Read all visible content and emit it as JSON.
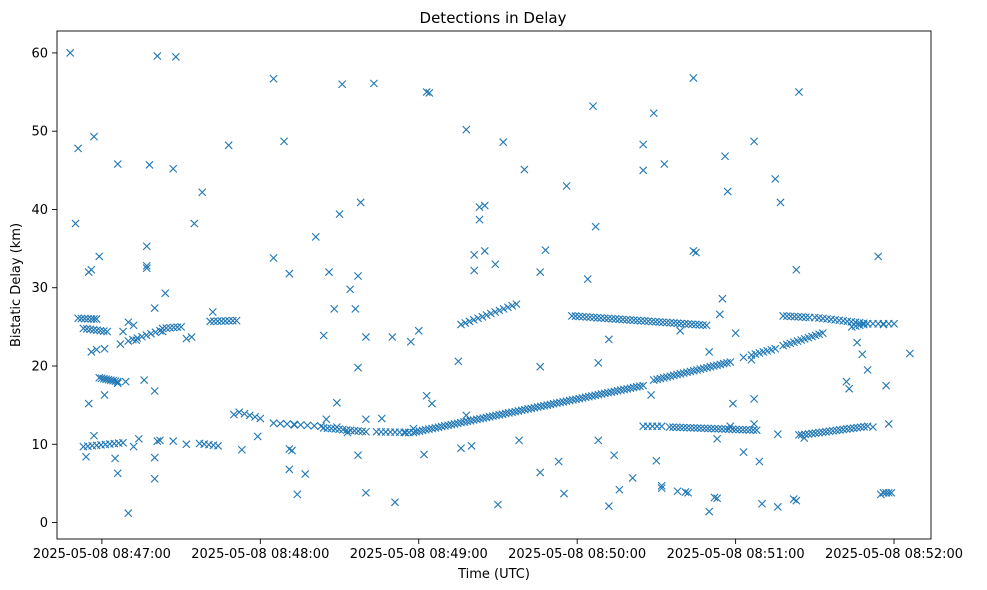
{
  "chart_data": {
    "type": "scatter",
    "title": "Detections in Delay",
    "xlabel": "Time (UTC)",
    "ylabel": "Bistatic Delay (km)",
    "marker": "x",
    "color": "#1f77b4",
    "x_unit": "seconds since 2025-05-08 08:47:00",
    "xlim": [
      -17,
      314
    ],
    "ylim": [
      -2.1,
      62.8
    ],
    "x_ticks": [
      {
        "value": 0,
        "label": "2025-05-08 08:47:00"
      },
      {
        "value": 60,
        "label": "2025-05-08 08:48:00"
      },
      {
        "value": 120,
        "label": "2025-05-08 08:49:00"
      },
      {
        "value": 180,
        "label": "2025-05-08 08:50:00"
      },
      {
        "value": 240,
        "label": "2025-05-08 08:51:00"
      },
      {
        "value": 300,
        "label": "2025-05-08 08:52:00"
      }
    ],
    "y_ticks": [
      {
        "value": 0,
        "label": "0"
      },
      {
        "value": 10,
        "label": "10"
      },
      {
        "value": 20,
        "label": "20"
      },
      {
        "value": 30,
        "label": "30"
      },
      {
        "value": 40,
        "label": "40"
      },
      {
        "value": 50,
        "label": "50"
      },
      {
        "value": 60,
        "label": "60"
      }
    ],
    "tracks": [
      {
        "name": "track-a",
        "x_start": -9,
        "x_end": -4,
        "y_start": 26.1,
        "y_end": 26.0,
        "count": 5
      },
      {
        "name": "track-b",
        "x_start": -7,
        "x_end": 2,
        "y_start": 24.8,
        "y_end": 24.4,
        "count": 8
      },
      {
        "name": "track-c",
        "x_start": -1,
        "x_end": 6,
        "y_start": 18.5,
        "y_end": 18.0,
        "count": 9
      },
      {
        "name": "track-d",
        "x_start": -7,
        "x_end": 8,
        "y_start": 9.7,
        "y_end": 10.2,
        "count": 10
      },
      {
        "name": "track-e",
        "x_start": 10,
        "x_end": 22,
        "y_start": 23.2,
        "y_end": 24.5,
        "count": 8
      },
      {
        "name": "track-f",
        "x_start": 23,
        "x_end": 30,
        "y_start": 24.8,
        "y_end": 25.0,
        "count": 6
      },
      {
        "name": "track-g",
        "x_start": 37,
        "x_end": 44,
        "y_start": 10.1,
        "y_end": 9.8,
        "count": 5
      },
      {
        "name": "track-h",
        "x_start": 41,
        "x_end": 51,
        "y_start": 25.7,
        "y_end": 25.8,
        "count": 8
      },
      {
        "name": "track-i",
        "x_start": 52,
        "x_end": 60,
        "y_start": 14.1,
        "y_end": 13.3,
        "count": 5
      },
      {
        "name": "track-j",
        "x_start": 65,
        "x_end": 83,
        "y_start": 12.7,
        "y_end": 12.3,
        "count": 8
      },
      {
        "name": "track-k",
        "x_start": 84,
        "x_end": 100,
        "y_start": 12.1,
        "y_end": 11.6,
        "count": 12
      },
      {
        "name": "track-l",
        "x_start": 104,
        "x_end": 118,
        "y_start": 11.6,
        "y_end": 11.5,
        "count": 9
      },
      {
        "name": "track-m",
        "x_start": 119,
        "x_end": 205,
        "y_start": 11.6,
        "y_end": 17.5,
        "count": 72
      },
      {
        "name": "track-n",
        "x_start": 136,
        "x_end": 157,
        "y_start": 25.3,
        "y_end": 27.9,
        "count": 14
      },
      {
        "name": "track-o",
        "x_start": 178,
        "x_end": 229,
        "y_start": 26.4,
        "y_end": 25.2,
        "count": 38
      },
      {
        "name": "track-p",
        "x_start": 209,
        "x_end": 238,
        "y_start": 18.2,
        "y_end": 20.5,
        "count": 24
      },
      {
        "name": "track-q",
        "x_start": 205,
        "x_end": 212,
        "y_start": 12.3,
        "y_end": 12.3,
        "count": 5
      },
      {
        "name": "track-r",
        "x_start": 215,
        "x_end": 248,
        "y_start": 12.2,
        "y_end": 11.8,
        "count": 26
      },
      {
        "name": "track-s",
        "x_start": 246,
        "x_end": 255,
        "y_start": 21.4,
        "y_end": 22.2,
        "count": 7
      },
      {
        "name": "track-t",
        "x_start": 258,
        "x_end": 273,
        "y_start": 22.6,
        "y_end": 24.2,
        "count": 12
      },
      {
        "name": "track-u",
        "x_start": 258,
        "x_end": 268,
        "y_start": 26.4,
        "y_end": 26.2,
        "count": 8
      },
      {
        "name": "track-v",
        "x_start": 270,
        "x_end": 290,
        "y_start": 26.2,
        "y_end": 25.4,
        "count": 14
      },
      {
        "name": "track-w",
        "x_start": 265,
        "x_end": 290,
        "y_start": 11.2,
        "y_end": 12.3,
        "count": 20
      },
      {
        "name": "track-x",
        "x_start": 292,
        "x_end": 300,
        "y_start": 25.4,
        "y_end": 25.4,
        "count": 5
      },
      {
        "name": "track-y",
        "x_start": 284,
        "x_end": 290,
        "y_start": 25.0,
        "y_end": 25.4,
        "count": 5
      },
      {
        "name": "track-z",
        "x_start": 296,
        "x_end": 299,
        "y_start": 3.8,
        "y_end": 3.8,
        "count": 4
      }
    ],
    "points": [
      [
        -12,
        60
      ],
      [
        -9,
        47.8
      ],
      [
        -10,
        38.2
      ],
      [
        -3,
        49.3
      ],
      [
        -1,
        34
      ],
      [
        6,
        45.8
      ],
      [
        18,
        45.7
      ],
      [
        17,
        35.3
      ],
      [
        17,
        32.8
      ],
      [
        17,
        32.5
      ],
      [
        21,
        59.6
      ],
      [
        28,
        59.5
      ],
      [
        27,
        45.2
      ],
      [
        24,
        29.3
      ],
      [
        -5,
        32
      ],
      [
        -4,
        32.3
      ],
      [
        -3,
        26
      ],
      [
        -2,
        26
      ],
      [
        -4,
        21.8
      ],
      [
        -2,
        22.1
      ],
      [
        1,
        22.2
      ],
      [
        7,
        22.8
      ],
      [
        8,
        24.4
      ],
      [
        6,
        17.8
      ],
      [
        10,
        25.6
      ],
      [
        12,
        25.2
      ],
      [
        13,
        23.3
      ],
      [
        9,
        18
      ],
      [
        16,
        18.2
      ],
      [
        20,
        27.4
      ],
      [
        20,
        16.8
      ],
      [
        23,
        24.4
      ],
      [
        -5,
        15.2
      ],
      [
        1,
        16.3
      ],
      [
        -3,
        11.1
      ],
      [
        -6,
        8.4
      ],
      [
        5,
        8.2
      ],
      [
        6,
        6.3
      ],
      [
        12,
        9.7
      ],
      [
        14,
        10.7
      ],
      [
        20,
        8.3
      ],
      [
        20,
        5.6
      ],
      [
        21,
        10.4
      ],
      [
        22,
        10.5
      ],
      [
        27,
        10.4
      ],
      [
        32,
        10
      ],
      [
        32,
        23.5
      ],
      [
        34,
        23.7
      ],
      [
        10,
        1.2
      ],
      [
        35,
        38.2
      ],
      [
        38,
        42.2
      ],
      [
        42,
        26.9
      ],
      [
        48,
        48.2
      ],
      [
        50,
        13.8
      ],
      [
        53,
        9.3
      ],
      [
        59,
        11
      ],
      [
        65,
        56.7
      ],
      [
        65,
        33.8
      ],
      [
        69,
        48.7
      ],
      [
        71,
        31.8
      ],
      [
        71,
        9.4
      ],
      [
        72,
        9.2
      ],
      [
        71,
        6.8
      ],
      [
        74,
        3.6
      ],
      [
        73,
        12.5
      ],
      [
        77,
        6.2
      ],
      [
        81,
        36.5
      ],
      [
        84,
        23.9
      ],
      [
        85,
        13.2
      ],
      [
        86,
        32
      ],
      [
        88,
        27.3
      ],
      [
        89,
        15.3
      ],
      [
        89,
        12.2
      ],
      [
        90,
        39.4
      ],
      [
        91,
        56
      ],
      [
        93,
        11.5
      ],
      [
        94,
        29.8
      ],
      [
        96,
        27.3
      ],
      [
        97,
        31.5
      ],
      [
        97,
        19.8
      ],
      [
        97,
        8.6
      ],
      [
        98,
        40.9
      ],
      [
        100,
        13.2
      ],
      [
        100,
        23.7
      ],
      [
        100,
        3.8
      ],
      [
        103,
        56.1
      ],
      [
        106,
        13.3
      ],
      [
        110,
        23.7
      ],
      [
        111,
        2.6
      ],
      [
        115,
        11.5
      ],
      [
        117,
        23.1
      ],
      [
        118,
        12
      ],
      [
        120,
        24.5
      ],
      [
        123,
        16.2
      ],
      [
        122,
        8.7
      ],
      [
        125,
        15.2
      ],
      [
        124,
        54.9
      ],
      [
        123,
        55
      ],
      [
        138,
        50.2
      ],
      [
        141,
        34.2
      ],
      [
        141,
        32.2
      ],
      [
        143,
        38.7
      ],
      [
        143,
        40.3
      ],
      [
        145,
        40.5
      ],
      [
        145,
        34.7
      ],
      [
        135,
        20.6
      ],
      [
        136,
        9.5
      ],
      [
        140,
        9.8
      ],
      [
        138,
        13.7
      ],
      [
        149,
        33
      ],
      [
        152,
        48.6
      ],
      [
        150,
        2.3
      ],
      [
        158,
        10.5
      ],
      [
        160,
        45.1
      ],
      [
        166,
        32
      ],
      [
        166,
        19.9
      ],
      [
        166,
        6.4
      ],
      [
        168,
        34.8
      ],
      [
        173,
        7.8
      ],
      [
        175,
        3.7
      ],
      [
        176,
        43
      ],
      [
        184,
        31.1
      ],
      [
        186,
        53.2
      ],
      [
        187,
        37.8
      ],
      [
        188,
        20.4
      ],
      [
        188,
        10.5
      ],
      [
        192,
        23.4
      ],
      [
        192,
        2.1
      ],
      [
        194,
        8.6
      ],
      [
        196,
        4.2
      ],
      [
        201,
        5.7
      ],
      [
        205,
        48.3
      ],
      [
        205,
        45
      ],
      [
        208,
        16.3
      ],
      [
        209,
        52.3
      ],
      [
        210,
        7.9
      ],
      [
        212,
        4.7
      ],
      [
        212,
        4.4
      ],
      [
        213,
        45.8
      ],
      [
        219,
        24.5
      ],
      [
        218,
        4
      ],
      [
        221,
        3.9
      ],
      [
        222,
        3.8
      ],
      [
        224,
        56.8
      ],
      [
        224,
        34.7
      ],
      [
        225,
        34.5
      ],
      [
        230,
        21.8
      ],
      [
        230,
        1.4
      ],
      [
        232,
        3.2
      ],
      [
        233,
        3.1
      ],
      [
        233,
        10.7
      ],
      [
        234,
        26.6
      ],
      [
        235,
        28.6
      ],
      [
        236,
        46.8
      ],
      [
        237,
        42.3
      ],
      [
        238,
        12.3
      ],
      [
        239,
        15.2
      ],
      [
        240,
        24.2
      ],
      [
        243,
        9
      ],
      [
        243,
        21.1
      ],
      [
        246,
        20.8
      ],
      [
        247,
        15.8
      ],
      [
        247,
        12.6
      ],
      [
        247,
        48.7
      ],
      [
        249,
        7.8
      ],
      [
        250,
        2.4
      ],
      [
        255,
        43.9
      ],
      [
        256,
        11.3
      ],
      [
        256,
        2
      ],
      [
        257,
        40.9
      ],
      [
        262,
        3
      ],
      [
        263,
        2.8
      ],
      [
        263,
        32.3
      ],
      [
        264,
        55
      ],
      [
        264,
        11.2
      ],
      [
        266,
        10.8
      ],
      [
        282,
        18
      ],
      [
        283,
        17.1
      ],
      [
        286,
        23
      ],
      [
        288,
        21.5
      ],
      [
        290,
        19.5
      ],
      [
        292,
        12.2
      ],
      [
        294,
        34
      ],
      [
        296,
        25.3
      ],
      [
        297,
        17.5
      ],
      [
        298,
        12.6
      ],
      [
        295,
        3.6
      ],
      [
        306,
        21.6
      ]
    ]
  }
}
